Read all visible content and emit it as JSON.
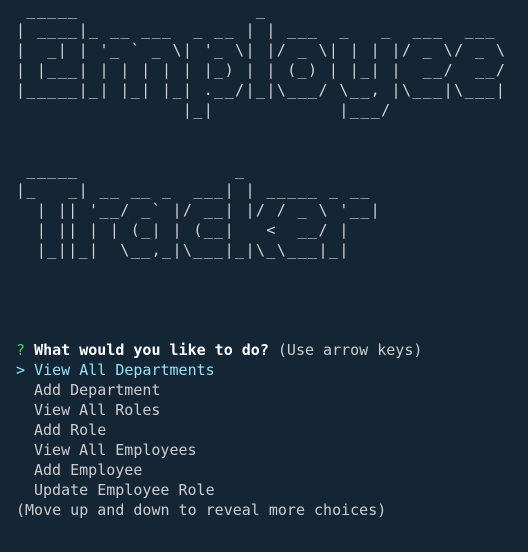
{
  "banner": {
    "employee": [
      " _____                 _",
      "| ____|_ __ ___  _ __ | | ___  _   _  ___  ___",
      "|  _| | '_ ` _ \\| '_ \\| |/ _ \\| | | |/ _ \\/ _ \\",
      "| |___| | | | | | |_) | | (_) | |_| |  __/  __/",
      "|_____|_| |_| |_| .__/|_|\\___/ \\__, |\\___|\\___|",
      "                |_|            |___/"
    ],
    "tracker": [
      " _____               _",
      "|_   _| __ __ _  ___| | _____ _ __",
      "  | || '__/ _` |/ __| |/ / _ \\ '__|",
      "  | || | | (_| | (__|   <  __/ |",
      "  |_||_|  \\__,_|\\___|_|\\_\\___|_|"
    ]
  },
  "prompt": {
    "marker": "?",
    "question": "What would you like to do?",
    "hint": "(Use arrow keys)",
    "pointer": ">"
  },
  "choices": [
    "View All Departments",
    "Add Department",
    "View All Roles",
    "Add Role",
    "View All Employees",
    "Add Employee",
    "Update Employee Role"
  ],
  "footer": "(Move up and down to reveal more choices)"
}
